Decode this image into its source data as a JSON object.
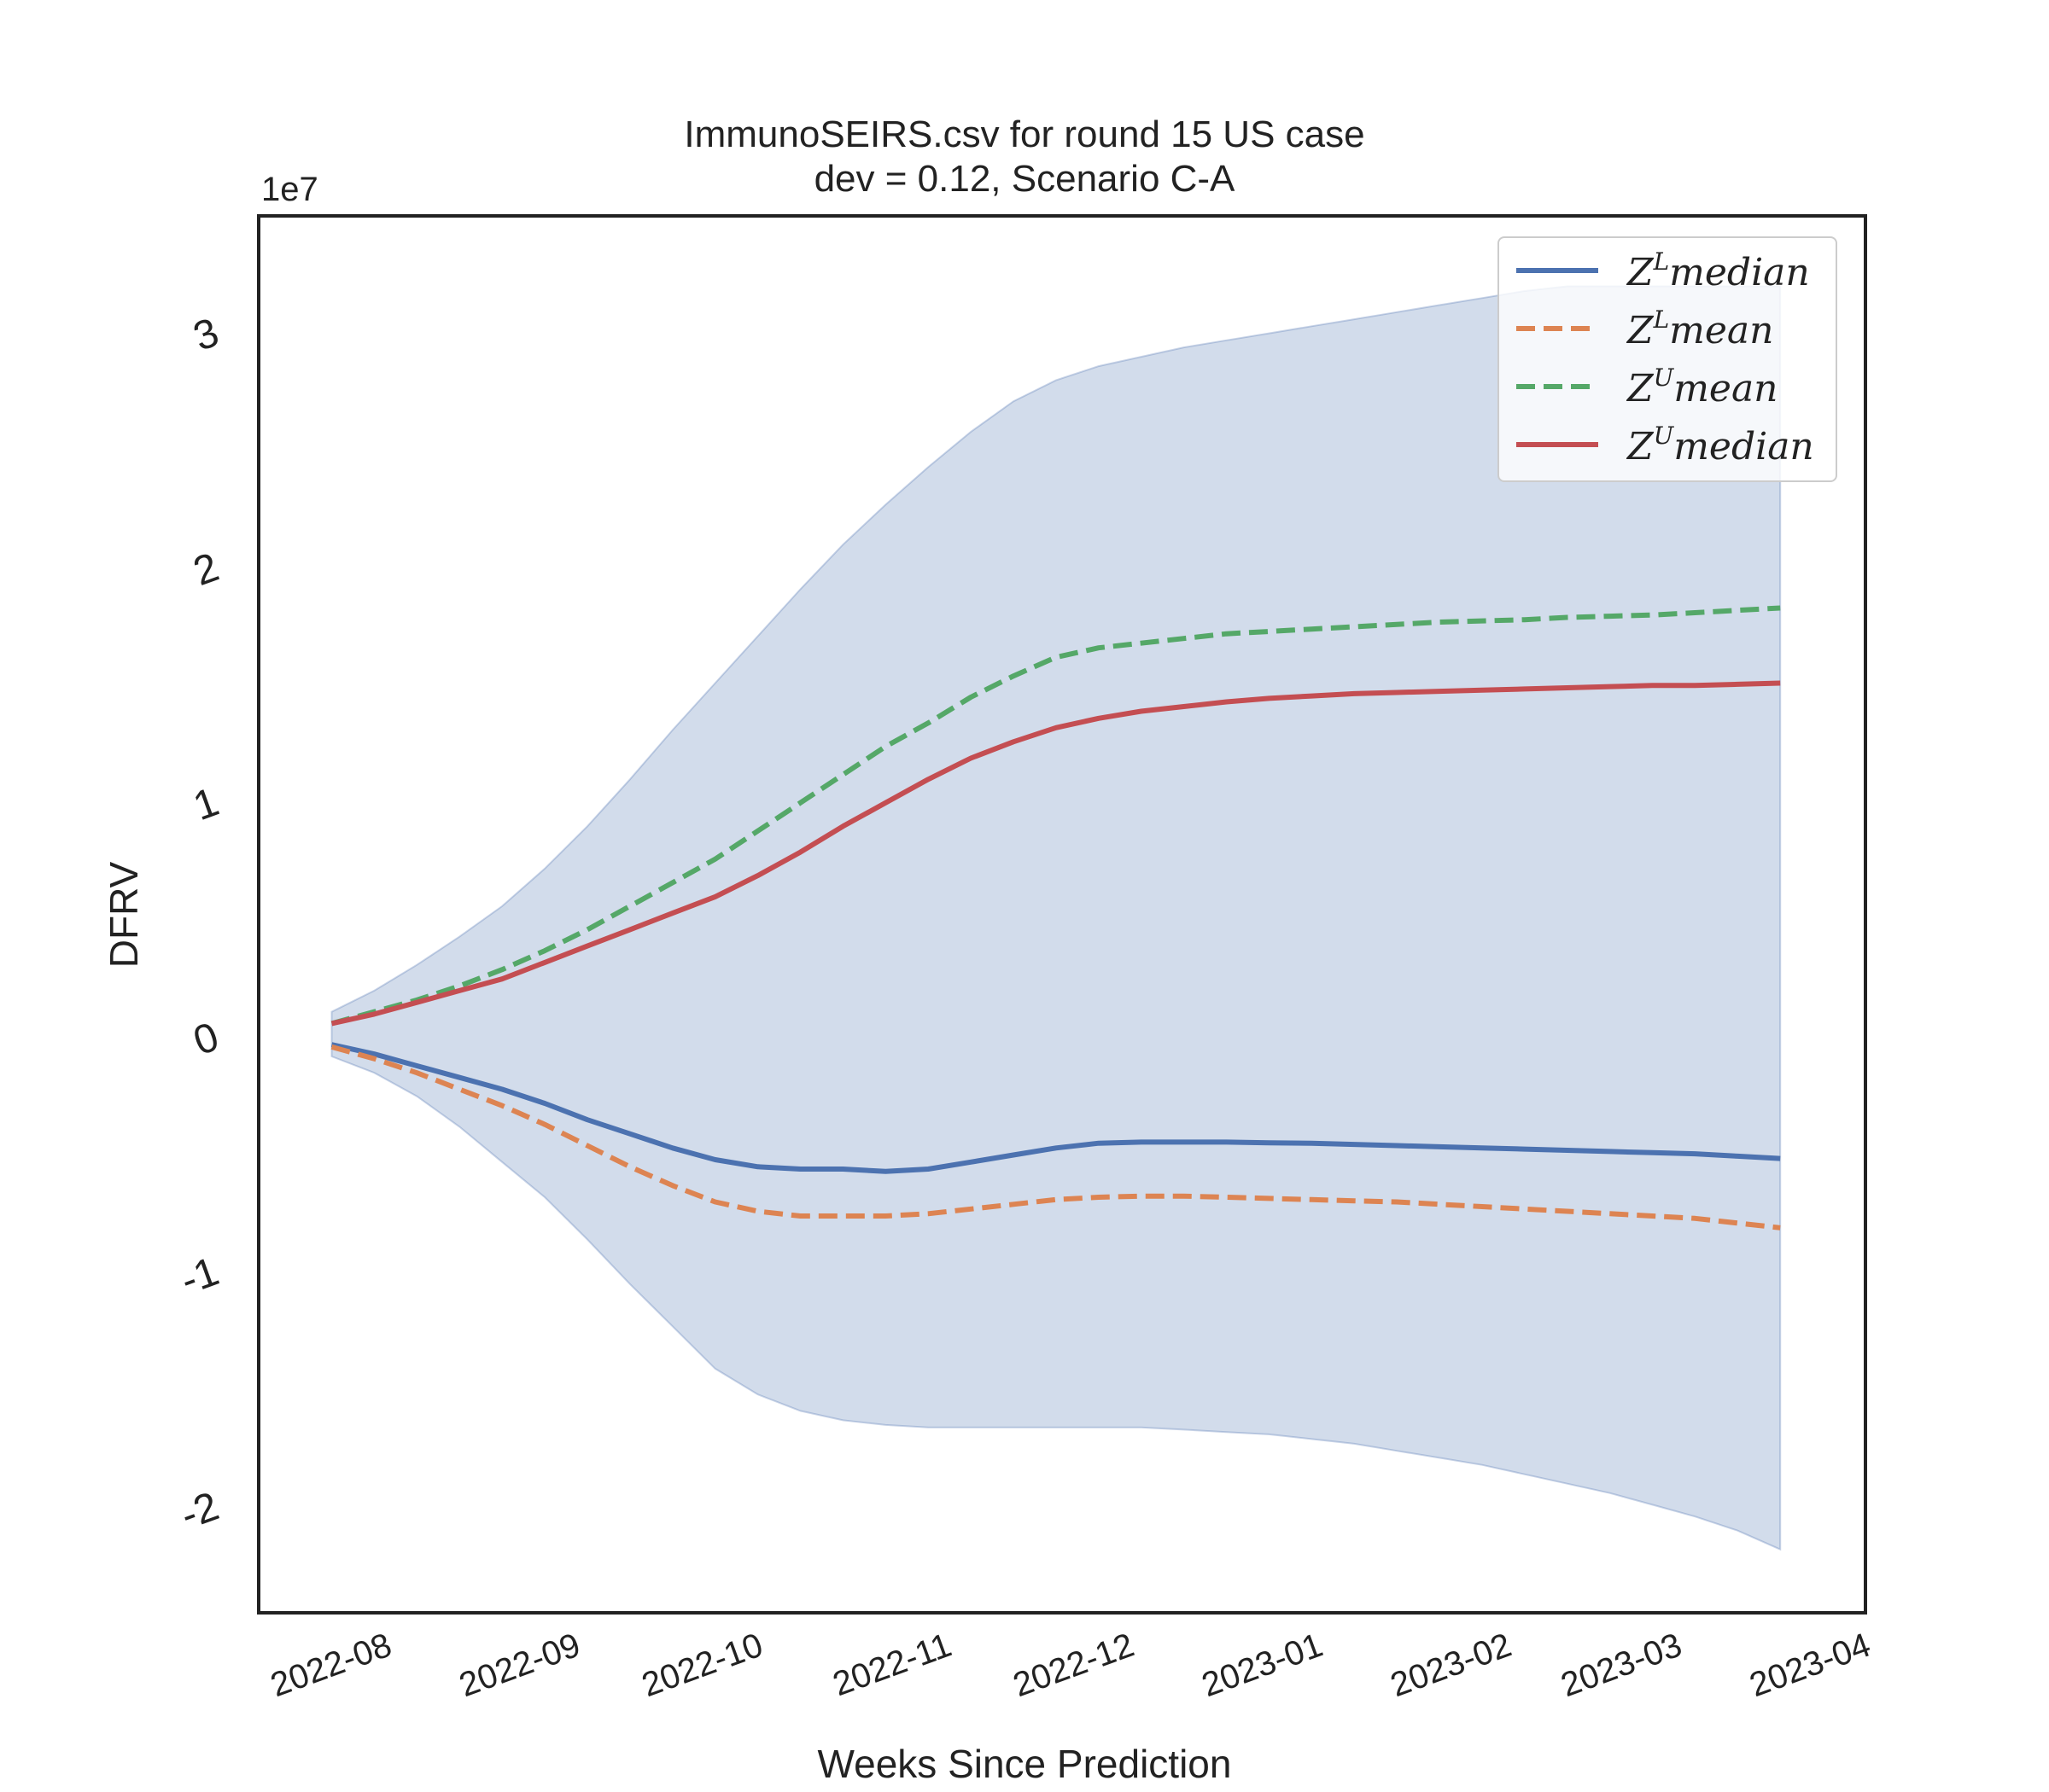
{
  "title_line1": "ImmunoSEIRS.csv for round 15 US case",
  "title_line2": "dev = 0.12, Scenario C-A",
  "xlabel": "Weeks Since Prediction",
  "ylabel": "DFRV",
  "y_exponent": "1e7",
  "chart_data": {
    "type": "line",
    "x_ticks": [
      "2022-08",
      "2022-09",
      "2022-10",
      "2022-11",
      "2022-12",
      "2023-01",
      "2023-02",
      "2023-03",
      "2023-04"
    ],
    "x_tick_dates": [
      "2022-08-01",
      "2022-09-01",
      "2022-10-01",
      "2022-11-01",
      "2022-12-01",
      "2023-01-01",
      "2023-02-01",
      "2023-03-01",
      "2023-04-01"
    ],
    "xlim": [
      "2022-07-18",
      "2023-04-08"
    ],
    "y_ticks": [
      -2,
      -1,
      0,
      1,
      2,
      3
    ],
    "y_tick_labels": [
      "-2",
      "-1",
      "0",
      "1",
      "2",
      "3"
    ],
    "ylim": [
      -2.45,
      3.5
    ],
    "x": [
      "2022-07-30",
      "2022-08-06",
      "2022-08-13",
      "2022-08-20",
      "2022-08-27",
      "2022-09-03",
      "2022-09-10",
      "2022-09-17",
      "2022-09-24",
      "2022-10-01",
      "2022-10-08",
      "2022-10-15",
      "2022-10-22",
      "2022-10-29",
      "2022-11-05",
      "2022-11-12",
      "2022-11-19",
      "2022-11-26",
      "2022-12-03",
      "2022-12-10",
      "2022-12-17",
      "2022-12-24",
      "2022-12-31",
      "2023-01-07",
      "2023-01-14",
      "2023-01-21",
      "2023-01-28",
      "2023-02-04",
      "2023-02-11",
      "2023-02-18",
      "2023-02-25",
      "2023-03-04",
      "2023-03-11",
      "2023-03-18",
      "2023-03-25"
    ],
    "band": {
      "color": "#4c72b0",
      "opacity": 0.25,
      "upper": [
        0.11,
        0.2,
        0.31,
        0.43,
        0.56,
        0.72,
        0.9,
        1.1,
        1.31,
        1.51,
        1.71,
        1.91,
        2.1,
        2.27,
        2.43,
        2.58,
        2.71,
        2.8,
        2.86,
        2.9,
        2.94,
        2.97,
        3.0,
        3.03,
        3.06,
        3.09,
        3.12,
        3.15,
        3.18,
        3.2,
        3.2,
        3.2,
        3.2,
        3.2,
        3.2
      ],
      "lower": [
        -0.08,
        -0.15,
        -0.25,
        -0.38,
        -0.53,
        -0.68,
        -0.86,
        -1.05,
        -1.23,
        -1.41,
        -1.52,
        -1.59,
        -1.63,
        -1.65,
        -1.66,
        -1.66,
        -1.66,
        -1.66,
        -1.66,
        -1.66,
        -1.67,
        -1.68,
        -1.69,
        -1.71,
        -1.73,
        -1.76,
        -1.79,
        -1.82,
        -1.86,
        -1.9,
        -1.94,
        -1.99,
        -2.04,
        -2.1,
        -2.18
      ]
    },
    "series": [
      {
        "name": "$Z^{L} median$",
        "color": "#4c72b0",
        "dash": "solid",
        "values": [
          -0.03,
          -0.07,
          -0.12,
          -0.17,
          -0.22,
          -0.28,
          -0.35,
          -0.41,
          -0.47,
          -0.52,
          -0.55,
          -0.56,
          -0.56,
          -0.57,
          -0.56,
          -0.53,
          -0.5,
          -0.47,
          -0.45,
          -0.445,
          -0.445,
          -0.445,
          -0.448,
          -0.45,
          -0.455,
          -0.46,
          -0.465,
          -0.47,
          -0.475,
          -0.48,
          -0.485,
          -0.49,
          -0.495,
          -0.505,
          -0.515
        ]
      },
      {
        "name": "$Z^{L} mean$",
        "color": "#dd8452",
        "dash": "dashed",
        "values": [
          -0.04,
          -0.09,
          -0.15,
          -0.22,
          -0.29,
          -0.37,
          -0.46,
          -0.55,
          -0.63,
          -0.7,
          -0.74,
          -0.76,
          -0.76,
          -0.76,
          -0.75,
          -0.73,
          -0.71,
          -0.69,
          -0.68,
          -0.675,
          -0.675,
          -0.68,
          -0.685,
          -0.69,
          -0.695,
          -0.7,
          -0.71,
          -0.72,
          -0.73,
          -0.74,
          -0.75,
          -0.76,
          -0.77,
          -0.79,
          -0.81
        ]
      },
      {
        "name": "$Z^{U} mean$",
        "color": "#55a868",
        "dash": "dashed",
        "values": [
          0.06,
          0.11,
          0.16,
          0.22,
          0.29,
          0.37,
          0.46,
          0.56,
          0.66,
          0.76,
          0.88,
          1.0,
          1.12,
          1.24,
          1.34,
          1.45,
          1.54,
          1.62,
          1.66,
          1.68,
          1.7,
          1.72,
          1.73,
          1.74,
          1.75,
          1.76,
          1.77,
          1.775,
          1.78,
          1.79,
          1.795,
          1.8,
          1.81,
          1.82,
          1.83
        ]
      },
      {
        "name": "$Z^{U} median$",
        "color": "#c44e52",
        "dash": "solid",
        "values": [
          0.06,
          0.1,
          0.15,
          0.2,
          0.25,
          0.32,
          0.39,
          0.46,
          0.53,
          0.6,
          0.69,
          0.79,
          0.9,
          1.0,
          1.1,
          1.19,
          1.26,
          1.32,
          1.36,
          1.39,
          1.41,
          1.43,
          1.445,
          1.455,
          1.465,
          1.47,
          1.475,
          1.48,
          1.485,
          1.49,
          1.495,
          1.5,
          1.5,
          1.505,
          1.51
        ]
      }
    ],
    "legend_position": "upper right",
    "grid": false
  }
}
